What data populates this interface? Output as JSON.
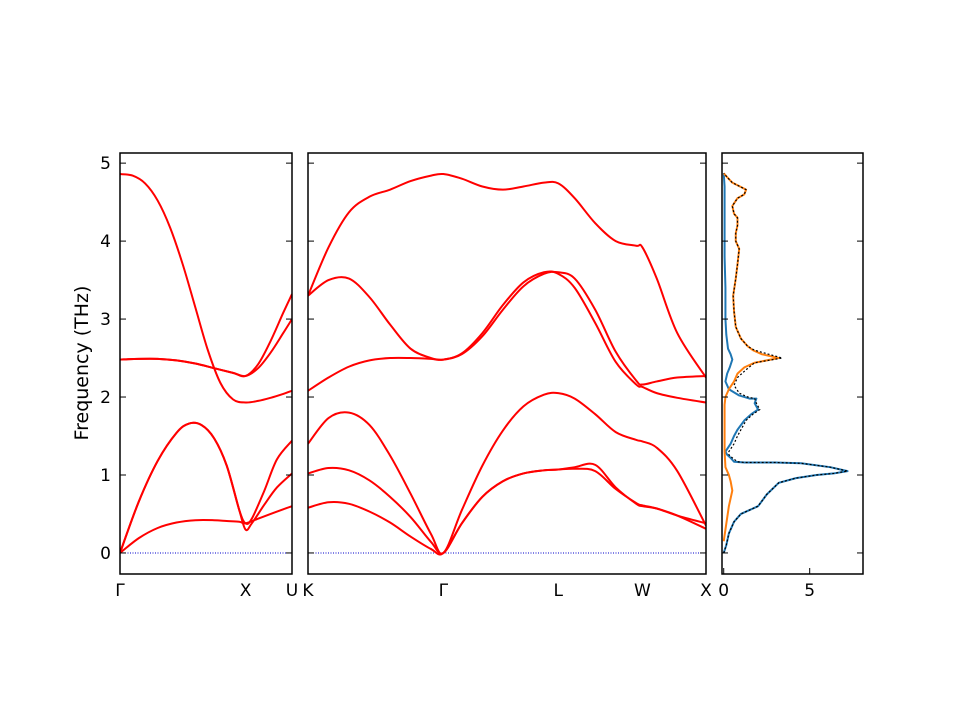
{
  "chart_data": {
    "type": "line",
    "ylabel": "Frequency (THz)",
    "ylim": [
      -0.27,
      5.13
    ],
    "yticks": [
      0,
      1,
      2,
      3,
      4,
      5
    ],
    "band_color": "#ff0000",
    "zero_line_color": "#0000cc",
    "panels": [
      {
        "name": "band-panel-gamma-x-u",
        "xlim": [
          0,
          1.37
        ],
        "xtick_positions": [
          0,
          1.0,
          1.37
        ],
        "xtick_labels": [
          "Γ",
          "X",
          "U"
        ],
        "bands": [
          {
            "x": [
              0,
              0.15,
              0.3,
              0.45,
              0.6,
              0.75,
              0.85,
              0.95,
              1.0,
              1.1,
              1.2,
              1.3,
              1.37
            ],
            "y": [
              0,
              0.19,
              0.32,
              0.39,
              0.42,
              0.42,
              0.41,
              0.4,
              0.38,
              0.44,
              0.5,
              0.56,
              0.6
            ]
          },
          {
            "x": [
              0,
              0.15,
              0.3,
              0.45,
              0.55,
              0.65,
              0.75,
              0.85,
              0.95,
              1.0,
              1.05,
              1.15,
              1.25,
              1.37
            ],
            "y": [
              0,
              0.66,
              1.18,
              1.54,
              1.66,
              1.64,
              1.47,
              1.12,
              0.55,
              0.3,
              0.38,
              0.62,
              0.84,
              1.02
            ]
          },
          {
            "x": [
              0,
              0.15,
              0.3,
              0.45,
              0.55,
              0.65,
              0.75,
              0.85,
              0.95,
              1.0,
              1.05,
              1.15,
              1.25,
              1.37
            ],
            "y": [
              0,
              0.66,
              1.18,
              1.54,
              1.66,
              1.64,
              1.47,
              1.12,
              0.55,
              0.38,
              0.44,
              0.8,
              1.2,
              1.44
            ]
          },
          {
            "x": [
              0,
              0.15,
              0.3,
              0.45,
              0.6,
              0.75,
              0.9,
              1.0,
              1.1,
              1.2,
              1.3,
              1.37
            ],
            "y": [
              2.48,
              2.49,
              2.49,
              2.47,
              2.43,
              2.37,
              2.31,
              2.27,
              2.37,
              2.57,
              2.82,
              3.0
            ]
          },
          {
            "x": [
              0,
              0.15,
              0.3,
              0.45,
              0.6,
              0.75,
              0.9,
              1.0,
              1.1,
              1.2,
              1.3,
              1.37
            ],
            "y": [
              2.48,
              2.49,
              2.49,
              2.47,
              2.43,
              2.37,
              2.31,
              2.27,
              2.42,
              2.72,
              3.08,
              3.32
            ]
          },
          {
            "x": [
              0,
              0.1,
              0.2,
              0.3,
              0.4,
              0.5,
              0.6,
              0.7,
              0.8,
              0.9,
              1.0,
              1.1,
              1.2,
              1.3,
              1.37
            ],
            "y": [
              4.86,
              4.84,
              4.74,
              4.52,
              4.17,
              3.7,
              3.15,
              2.6,
              2.18,
              1.97,
              1.93,
              1.95,
              1.99,
              2.04,
              2.08
            ]
          }
        ]
      },
      {
        "name": "band-panel-k-gamma-l-w-x",
        "xlim": [
          0,
          1.94
        ],
        "xtick_positions": [
          0,
          0.66,
          1.22,
          1.63,
          1.94
        ],
        "xtick_labels": [
          "K",
          "Γ",
          "L",
          "W",
          "X"
        ],
        "bands": [
          {
            "x": [
              0,
              0.1,
              0.2,
              0.3,
              0.4,
              0.5,
              0.6,
              0.66,
              0.75,
              0.85,
              0.95,
              1.05,
              1.15,
              1.22,
              1.3,
              1.4,
              1.5,
              1.6,
              1.63,
              1.7,
              1.8,
              1.94
            ],
            "y": [
              0.58,
              0.65,
              0.63,
              0.53,
              0.39,
              0.21,
              0.05,
              0,
              0.38,
              0.72,
              0.92,
              1.02,
              1.06,
              1.07,
              1.08,
              1.05,
              0.82,
              0.64,
              0.61,
              0.57,
              0.48,
              0.31
            ]
          },
          {
            "x": [
              0,
              0.1,
              0.2,
              0.3,
              0.4,
              0.5,
              0.6,
              0.66,
              0.75,
              0.85,
              0.95,
              1.05,
              1.15,
              1.22,
              1.3,
              1.4,
              1.5,
              1.6,
              1.63,
              1.7,
              1.8,
              1.94
            ],
            "y": [
              1.02,
              1.09,
              1.06,
              0.93,
              0.72,
              0.46,
              0.14,
              0,
              0.38,
              0.72,
              0.92,
              1.02,
              1.06,
              1.07,
              1.1,
              1.13,
              0.84,
              0.63,
              0.6,
              0.57,
              0.48,
              0.38
            ]
          },
          {
            "x": [
              0,
              0.1,
              0.2,
              0.3,
              0.4,
              0.5,
              0.6,
              0.66,
              0.75,
              0.85,
              0.95,
              1.05,
              1.15,
              1.22,
              1.3,
              1.4,
              1.5,
              1.6,
              1.63,
              1.7,
              1.8,
              1.94
            ],
            "y": [
              1.4,
              1.73,
              1.8,
              1.64,
              1.25,
              0.76,
              0.24,
              0,
              0.55,
              1.12,
              1.57,
              1.88,
              2.03,
              2.05,
              1.98,
              1.78,
              1.55,
              1.45,
              1.43,
              1.35,
              1.05,
              0.35
            ]
          },
          {
            "x": [
              0,
              0.1,
              0.2,
              0.3,
              0.4,
              0.5,
              0.6,
              0.66,
              0.75,
              0.85,
              0.95,
              1.05,
              1.15,
              1.22,
              1.3,
              1.4,
              1.5,
              1.6,
              1.63,
              1.7,
              1.8,
              1.94
            ],
            "y": [
              2.08,
              2.25,
              2.39,
              2.47,
              2.5,
              2.5,
              2.49,
              2.48,
              2.55,
              2.78,
              3.12,
              3.42,
              3.58,
              3.6,
              3.52,
              3.12,
              2.58,
              2.21,
              2.16,
              2.2,
              2.25,
              2.27
            ]
          },
          {
            "x": [
              0,
              0.1,
              0.2,
              0.3,
              0.4,
              0.5,
              0.6,
              0.66,
              0.75,
              0.85,
              0.95,
              1.05,
              1.15,
              1.22,
              1.3,
              1.4,
              1.5,
              1.6,
              1.63,
              1.7,
              1.8,
              1.94
            ],
            "y": [
              3.3,
              3.5,
              3.52,
              3.28,
              2.93,
              2.62,
              2.5,
              2.48,
              2.56,
              2.82,
              3.18,
              3.47,
              3.6,
              3.58,
              3.4,
              2.95,
              2.45,
              2.16,
              2.13,
              2.05,
              1.99,
              1.93
            ]
          },
          {
            "x": [
              0,
              0.1,
              0.2,
              0.3,
              0.4,
              0.5,
              0.6,
              0.66,
              0.75,
              0.85,
              0.95,
              1.05,
              1.15,
              1.22,
              1.3,
              1.4,
              1.5,
              1.6,
              1.63,
              1.7,
              1.8,
              1.94
            ],
            "y": [
              3.3,
              3.92,
              4.37,
              4.57,
              4.66,
              4.77,
              4.84,
              4.86,
              4.8,
              4.7,
              4.66,
              4.7,
              4.75,
              4.74,
              4.55,
              4.23,
              4.0,
              3.94,
              3.92,
              3.52,
              2.82,
              2.25
            ]
          }
        ]
      }
    ],
    "dos_panel": {
      "name": "dos-panel",
      "xlim": [
        -0.1,
        8.1
      ],
      "xticks": [
        0,
        5
      ],
      "series": [
        {
          "color": "#1f77b4",
          "dash": "",
          "x": [
            0,
            0.15,
            0.3,
            0.6,
            1.0,
            1.5,
            2.0,
            2.5,
            3.2,
            4.2,
            5.4,
            6.4,
            7.2,
            6.2,
            4.5,
            3.0,
            2.0,
            1.2,
            0.6,
            0.4,
            0.2,
            0.1,
            0.4,
            0.6,
            0.8,
            1.2,
            1.6,
            2.0,
            1.8,
            1.9,
            1.5,
            0.9,
            0.3,
            0.1,
            0.2,
            0.35,
            0.5,
            0.4,
            0.25,
            0.15,
            0.1,
            0.1,
            0.05,
            0.05,
            0.05,
            0
          ],
          "y": [
            0,
            0.1,
            0.25,
            0.4,
            0.5,
            0.55,
            0.6,
            0.75,
            0.9,
            0.96,
            1.0,
            1.02,
            1.05,
            1.1,
            1.15,
            1.16,
            1.16,
            1.16,
            1.17,
            1.22,
            1.26,
            1.3,
            1.4,
            1.5,
            1.58,
            1.7,
            1.78,
            1.84,
            1.92,
            1.98,
            1.98,
            2.02,
            2.1,
            2.2,
            2.3,
            2.38,
            2.48,
            2.55,
            2.62,
            2.8,
            3.0,
            3.4,
            3.8,
            4.2,
            4.7,
            4.87
          ]
        },
        {
          "color": "#ff7f0e",
          "dash": "",
          "x": [
            0,
            0.1,
            0.2,
            0.3,
            0.4,
            0.5,
            0.4,
            0.3,
            0.1,
            0.05,
            0.05,
            0.05,
            0.1,
            0.3,
            0.6,
            0.8,
            1.2,
            1.8,
            3.2,
            2.2,
            1.7,
            1.4,
            1.0,
            0.7,
            0.6,
            0.55,
            0.7,
            0.8,
            0.9,
            0.7,
            0.7,
            0.8,
            0.8,
            0.6,
            0.5,
            0.8,
            1.2,
            1.3,
            0.5,
            0.2,
            0
          ],
          "y": [
            0.15,
            0.3,
            0.45,
            0.6,
            0.7,
            0.8,
            0.92,
            1.0,
            1.1,
            1.3,
            1.6,
            1.9,
            2.0,
            2.1,
            2.2,
            2.3,
            2.38,
            2.44,
            2.5,
            2.55,
            2.6,
            2.65,
            2.75,
            2.9,
            3.1,
            3.3,
            3.52,
            3.7,
            3.9,
            4.0,
            4.1,
            4.2,
            4.3,
            4.35,
            4.45,
            4.55,
            4.6,
            4.66,
            4.75,
            4.82,
            4.87
          ]
        },
        {
          "color": "#000000",
          "dash": "2,2",
          "x": [
            0,
            0.15,
            0.3,
            0.6,
            1.0,
            1.5,
            2.0,
            2.5,
            3.2,
            4.2,
            5.4,
            6.4,
            7.2,
            6.2,
            4.5,
            3.0,
            2.0,
            1.2,
            0.8,
            0.5,
            0.3,
            0.3,
            0.6,
            0.8,
            1.0,
            1.3,
            1.7,
            2.1,
            1.9,
            1.8,
            1.4,
            0.9,
            0.6,
            0.8,
            1.3,
            1.8,
            3.4,
            2.6,
            1.8,
            1.4,
            1.0,
            0.7,
            0.6,
            0.55,
            0.7,
            0.8,
            0.9,
            0.7,
            0.7,
            0.8,
            0.8,
            0.6,
            0.5,
            0.8,
            1.2,
            1.3,
            0.5,
            0.2,
            0
          ],
          "y": [
            0,
            0.1,
            0.25,
            0.4,
            0.5,
            0.55,
            0.6,
            0.75,
            0.9,
            0.96,
            1.0,
            1.02,
            1.05,
            1.1,
            1.15,
            1.16,
            1.16,
            1.16,
            1.17,
            1.22,
            1.26,
            1.3,
            1.4,
            1.5,
            1.58,
            1.7,
            1.78,
            1.84,
            1.92,
            1.98,
            2.0,
            2.05,
            2.15,
            2.25,
            2.35,
            2.44,
            2.5,
            2.55,
            2.6,
            2.65,
            2.75,
            2.9,
            3.1,
            3.3,
            3.52,
            3.7,
            3.9,
            4.0,
            4.1,
            4.2,
            4.3,
            4.35,
            4.45,
            4.55,
            4.6,
            4.66,
            4.75,
            4.82,
            4.87
          ]
        }
      ]
    }
  }
}
